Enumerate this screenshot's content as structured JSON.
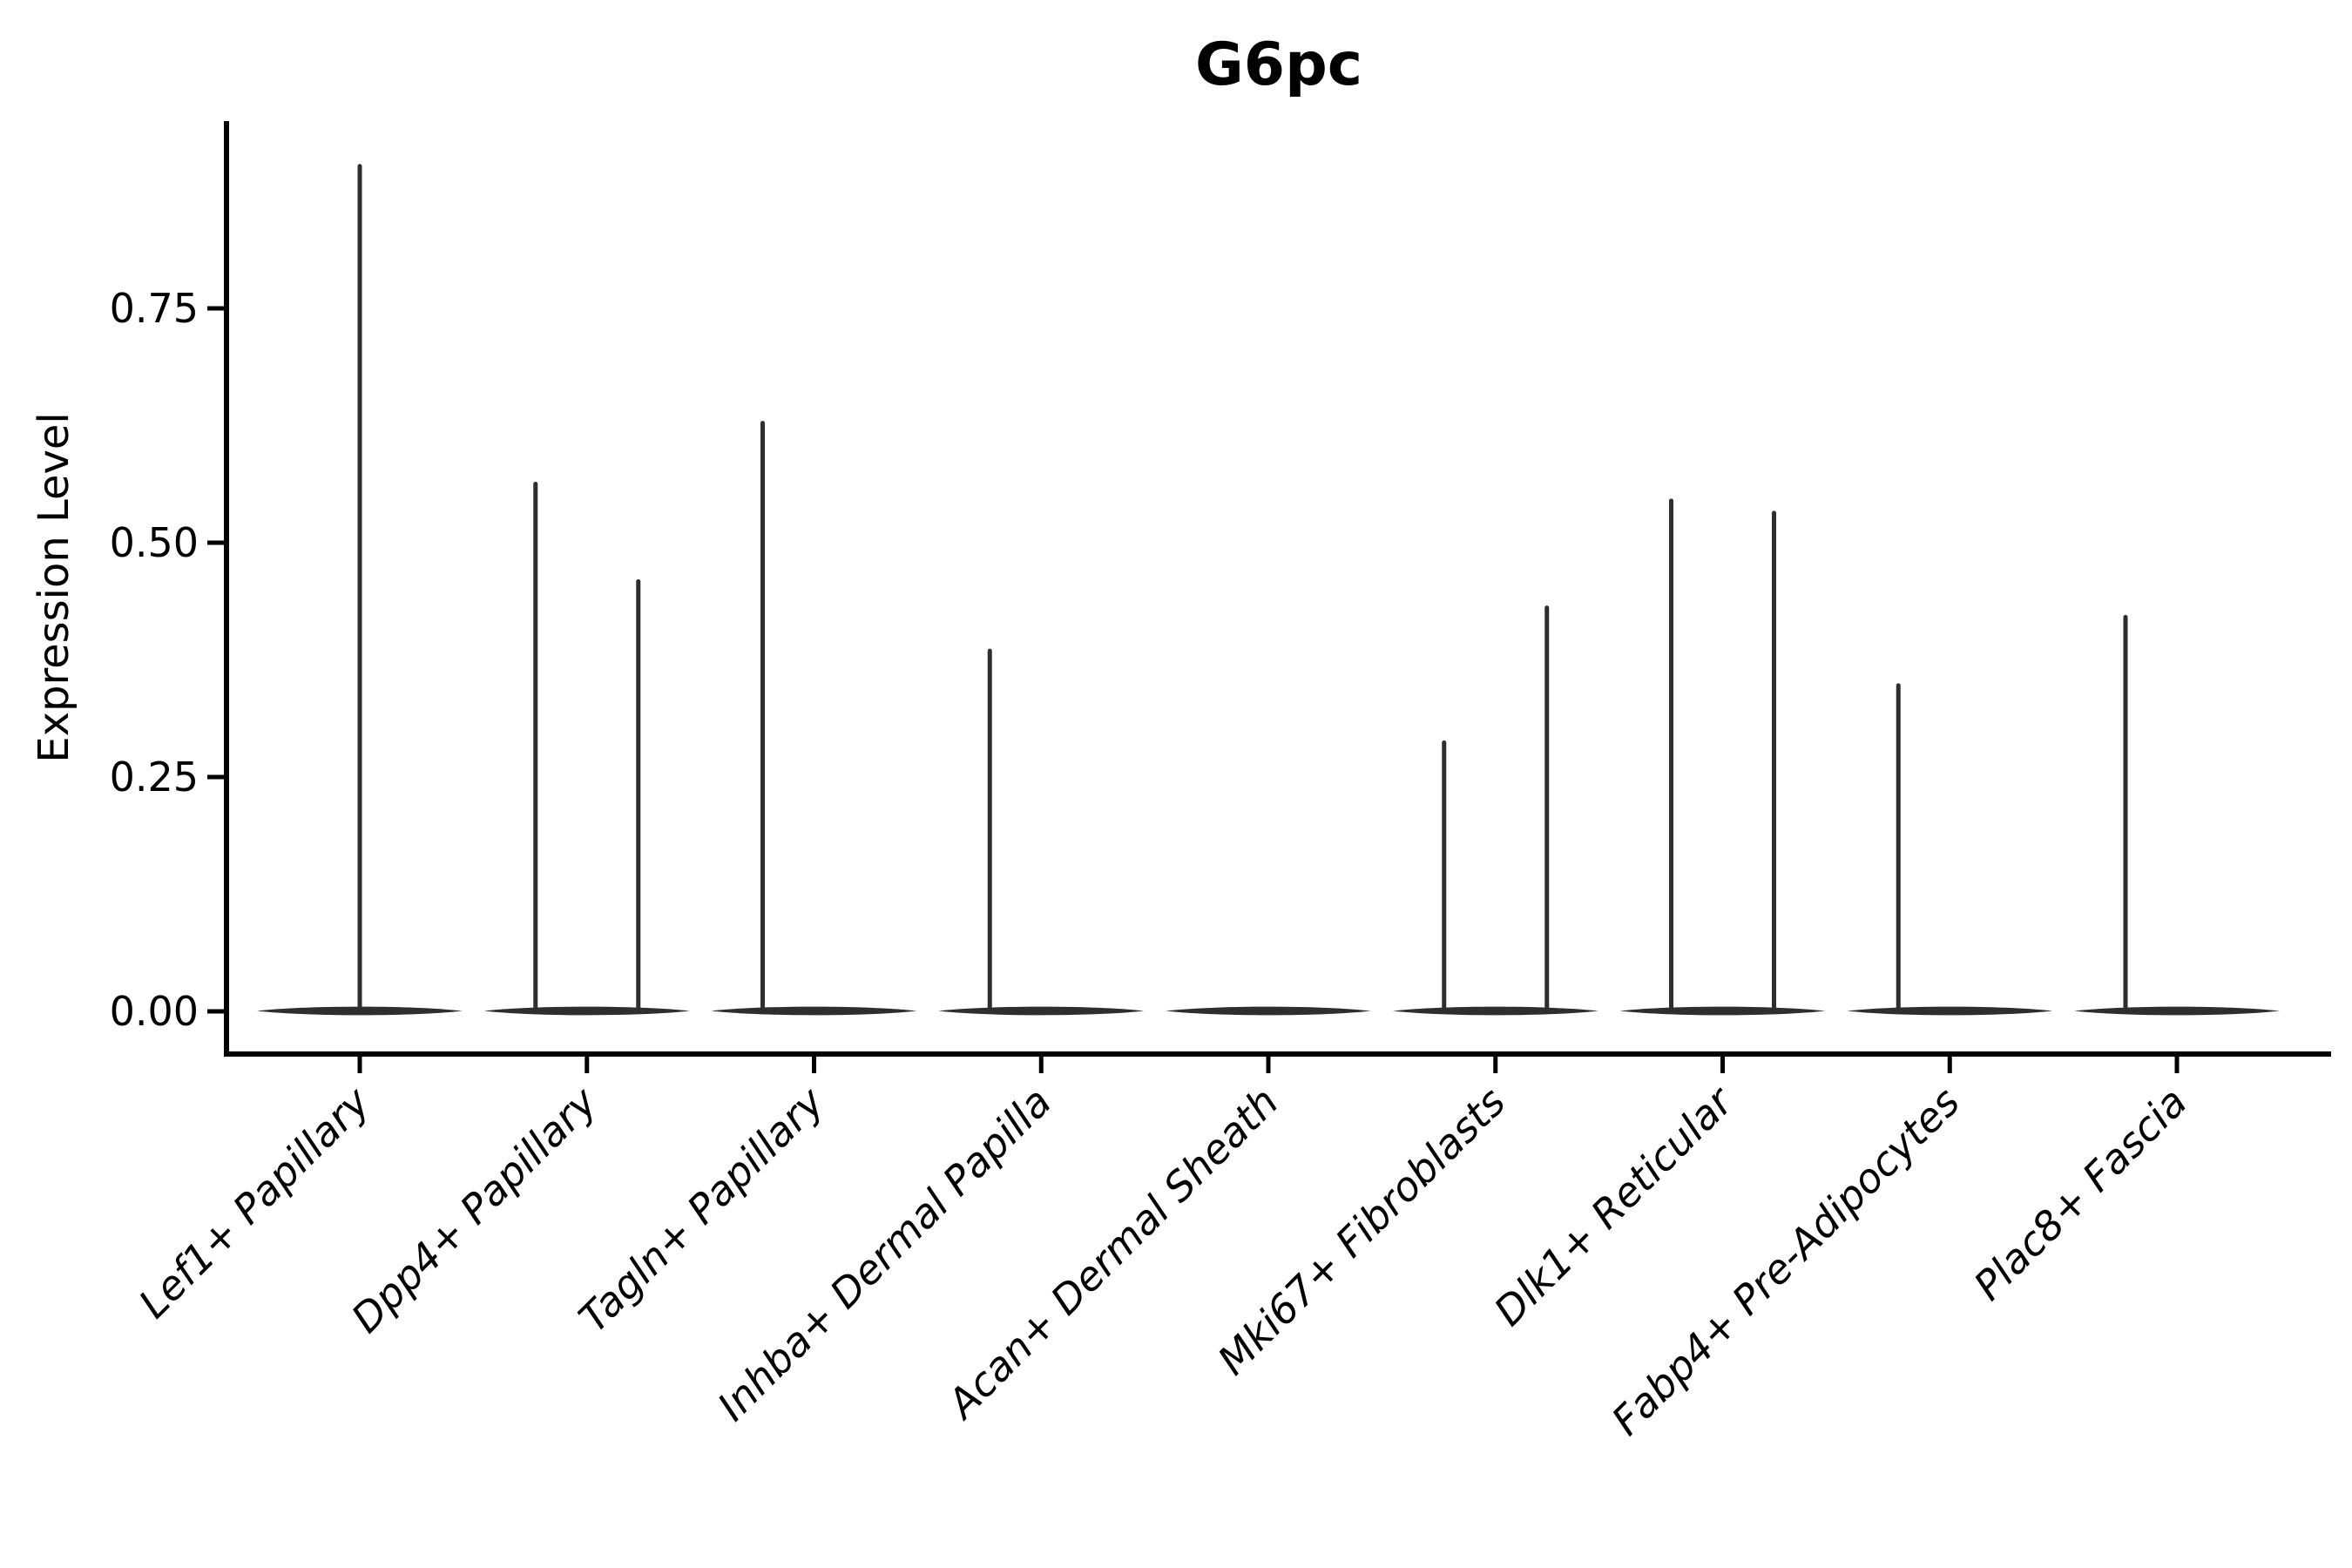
{
  "figure": {
    "title": "G6pc",
    "y_axis_label": "Expression Level",
    "y_tick_labels": [
      "0.00",
      "0.25",
      "0.50",
      "0.75"
    ]
  },
  "chart_data": {
    "type": "violin",
    "title": "G6pc",
    "xlabel": "",
    "ylabel": "Expression Level",
    "ylim": [
      -0.046,
      0.948
    ],
    "yticks": {
      "values": [
        0.0,
        0.25,
        0.5,
        0.75
      ],
      "labels": [
        "0.00",
        "0.25",
        "0.50",
        "0.75"
      ]
    },
    "grid": false,
    "legend_position": "none",
    "baseline_value": 0.0,
    "categories": [
      "Lef1+ Papillary",
      "Dpp4+ Papillary",
      "Tagln+ Papillary",
      "Inhba+ Dermal Papilla",
      "Acan+ Dermal Sheath",
      "Mki67+ Fibroblasts",
      "Dlk1+ Reticular",
      "Fabp4+ Pre-Adipocytes",
      "Plac8+ Fascia"
    ],
    "violins": [
      {
        "category": "Lef1+ Papillary",
        "spikes": [
          {
            "position": "center",
            "max": 0.904
          }
        ]
      },
      {
        "category": "Dpp4+ Papillary",
        "spikes": [
          {
            "position": "left",
            "max": 0.565
          },
          {
            "position": "right",
            "max": 0.461
          }
        ]
      },
      {
        "category": "Tagln+ Papillary",
        "spikes": [
          {
            "position": "left",
            "max": 0.63
          }
        ]
      },
      {
        "category": "Inhba+ Dermal Papilla",
        "spikes": [
          {
            "position": "left",
            "max": 0.387
          }
        ]
      },
      {
        "category": "Acan+ Dermal Sheath",
        "spikes": []
      },
      {
        "category": "Mki67+ Fibroblasts",
        "spikes": [
          {
            "position": "left",
            "max": 0.289
          },
          {
            "position": "right",
            "max": 0.433
          }
        ]
      },
      {
        "category": "Dlk1+ Reticular",
        "spikes": [
          {
            "position": "left",
            "max": 0.547
          },
          {
            "position": "right",
            "max": 0.534
          }
        ]
      },
      {
        "category": "Fabp4+ Pre-Adipocytes",
        "spikes": [
          {
            "position": "left",
            "max": 0.35
          }
        ]
      },
      {
        "category": "Plac8+ Fascia",
        "spikes": [
          {
            "position": "left",
            "max": 0.423
          }
        ]
      }
    ]
  },
  "colors": {
    "background": "#ffffff",
    "axis": "#000000",
    "text": "#000000",
    "violin": "#2e2e2e"
  }
}
